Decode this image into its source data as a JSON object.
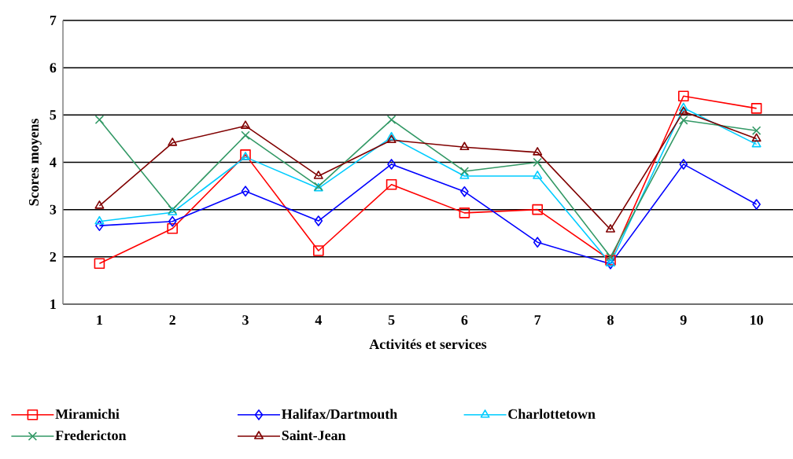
{
  "chart_data": {
    "type": "line",
    "xlabel": "Activités et services",
    "ylabel": "Scores moyens",
    "categories": [
      "1",
      "2",
      "3",
      "4",
      "5",
      "6",
      "7",
      "8",
      "9",
      "10"
    ],
    "ylim": [
      1,
      7
    ],
    "yticks": [
      1,
      2,
      3,
      4,
      5,
      6,
      7
    ],
    "grid": "y",
    "legend": "bottom",
    "line_style": "solid",
    "series": [
      {
        "name": "Miramichi",
        "color": "#ff0000",
        "marker": "square",
        "values": [
          1.86,
          2.6,
          4.16,
          2.13,
          3.53,
          2.93,
          3.0,
          1.93,
          5.4,
          5.14
        ]
      },
      {
        "name": "Halifax/Dartmouth",
        "color": "#0000ff",
        "marker": "diamond",
        "values": [
          2.66,
          2.75,
          3.39,
          2.76,
          3.96,
          3.38,
          2.31,
          1.85,
          3.96,
          3.11
        ]
      },
      {
        "name": "Charlottetown",
        "color": "#00ccff",
        "marker": "triangle",
        "values": [
          2.75,
          2.94,
          4.11,
          3.45,
          4.53,
          3.71,
          3.71,
          1.86,
          5.15,
          4.38
        ]
      },
      {
        "name": "Fredericton",
        "color": "#339966",
        "marker": "cross",
        "values": [
          4.9,
          3.0,
          4.57,
          3.49,
          4.9,
          3.81,
          4.0,
          2.0,
          4.89,
          4.67
        ]
      },
      {
        "name": "Saint-Jean",
        "color": "#800000",
        "marker": "triangle",
        "values": [
          3.08,
          4.41,
          4.77,
          3.71,
          4.47,
          4.32,
          4.21,
          2.58,
          5.07,
          4.5
        ]
      }
    ]
  }
}
